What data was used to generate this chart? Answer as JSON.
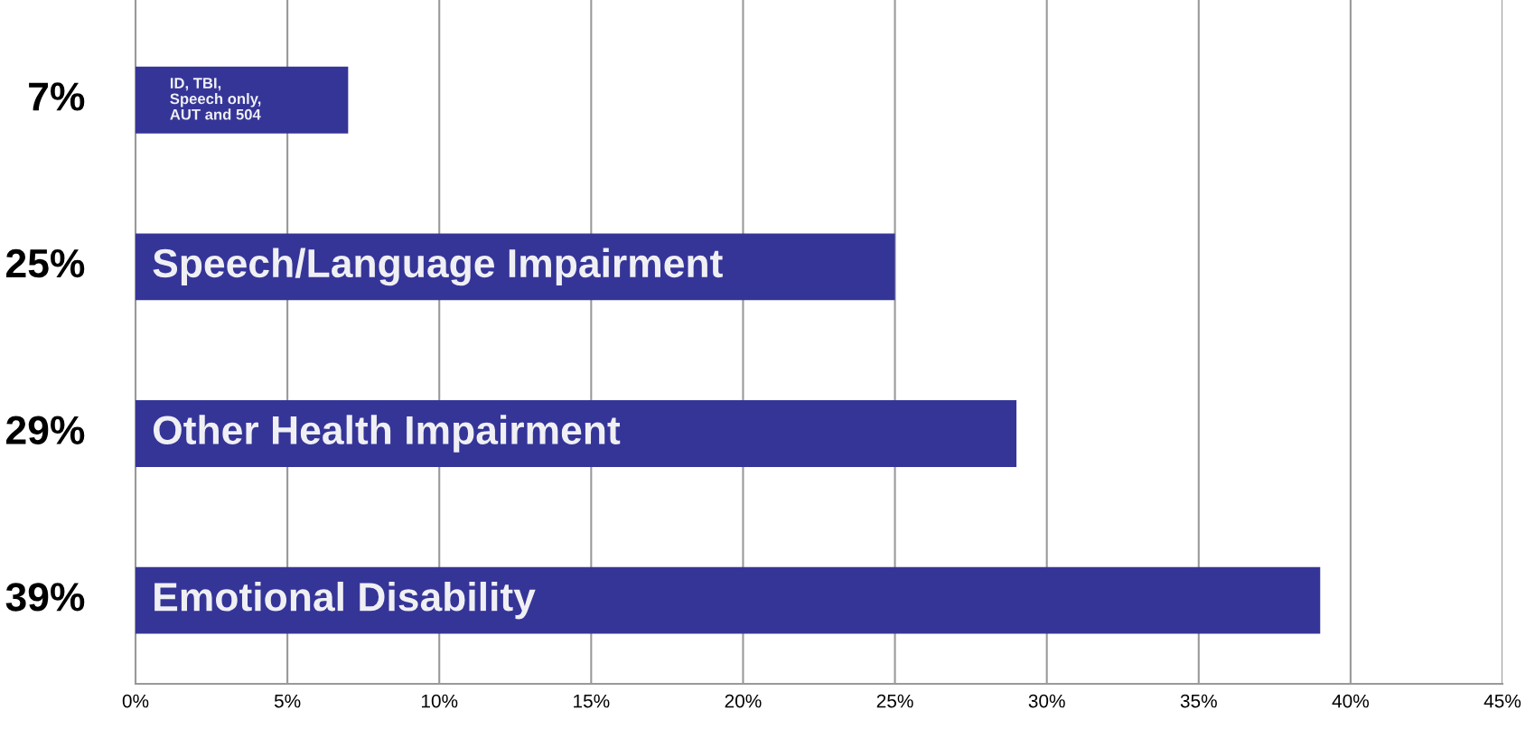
{
  "chart_data": {
    "type": "bar",
    "orientation": "horizontal",
    "categories": [
      "ID, TBI,\nSpeech only,\nAUT and 504",
      "Speech/Language Impairment",
      "Other Health Impairment",
      "Emotional Disability"
    ],
    "values": [
      7,
      25,
      29,
      39
    ],
    "value_labels": [
      "7%",
      "25%",
      "29%",
      "39%"
    ],
    "color": "#353598",
    "xlim": [
      0,
      45
    ],
    "xticks": [
      {
        "value": 0,
        "label": "0%"
      },
      {
        "value": 5,
        "label": "5%"
      },
      {
        "value": 10,
        "label": "10%"
      },
      {
        "value": 15,
        "label": "15%"
      },
      {
        "value": 20,
        "label": "20%"
      },
      {
        "value": 25,
        "label": "25%"
      },
      {
        "value": 30,
        "label": "30%"
      },
      {
        "value": 35,
        "label": "35%"
      },
      {
        "value": 40,
        "label": "40%"
      },
      {
        "value": 45,
        "label": "45%"
      }
    ],
    "grid": "x",
    "legend": false
  }
}
